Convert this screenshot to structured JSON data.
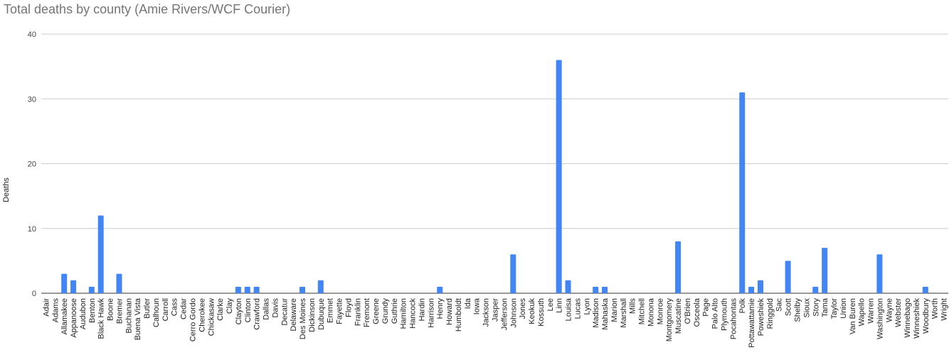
{
  "chart_data": {
    "type": "bar",
    "title": "Total deaths by county (Amie Rivers/WCF Courier)",
    "xlabel": "",
    "ylabel": "Deaths",
    "ylim": [
      0,
      40
    ],
    "yticks": [
      "0",
      "10",
      "20",
      "30",
      "40"
    ],
    "grid": true,
    "legend": "none",
    "bar_color": "#4285f4",
    "categories": [
      "Adair",
      "Adams",
      "Allamakee",
      "Appanoose",
      "Audubon",
      "Benton",
      "Black Hawk",
      "Boone",
      "Bremer",
      "Buchanan",
      "Buena Vista",
      "Butler",
      "Calhoun",
      "Carroll",
      "Cass",
      "Cedar",
      "Cerro Gordo",
      "Cherokee",
      "Chickasaw",
      "Clarke",
      "Clay",
      "Clayton",
      "Clinton",
      "Crawford",
      "Dallas",
      "Davis",
      "Decatur",
      "Delaware",
      "Des Moines",
      "Dickinson",
      "Dubuque",
      "Emmet",
      "Fayette",
      "Floyd",
      "Franklin",
      "Fremont",
      "Greene",
      "Grundy",
      "Guthrie",
      "Hamilton",
      "Hancock",
      "Hardin",
      "Harrison",
      "Henry",
      "Howard",
      "Humboldt",
      "Ida",
      "Iowa",
      "Jackson",
      "Jasper",
      "Jefferson",
      "Johnson",
      "Jones",
      "Keokuk",
      "Kossuth",
      "Lee",
      "Linn",
      "Louisa",
      "Lucas",
      "Lyon",
      "Madison",
      "Mahaska",
      "Marion",
      "Marshall",
      "Mills",
      "Mitchell",
      "Monona",
      "Monroe",
      "Montgomery",
      "Muscatine",
      "O'Brien",
      "Osceola",
      "Page",
      "Palo Alto",
      "Plymouth",
      "Pocahontas",
      "Polk",
      "Pottawattamie",
      "Poweshiek",
      "Ringgold",
      "Sac",
      "Scott",
      "Shelby",
      "Sioux",
      "Story",
      "Tama",
      "Taylor",
      "Union",
      "Van Buren",
      "Wapello",
      "Warren",
      "Washington",
      "Wayne",
      "Webster",
      "Winnebago",
      "Winneshiek",
      "Woodbury",
      "Worth",
      "Wright"
    ],
    "values": [
      0,
      0,
      3,
      2,
      0,
      1,
      12,
      0,
      3,
      0,
      0,
      0,
      0,
      0,
      0,
      0,
      0,
      0,
      0,
      0,
      0,
      1,
      1,
      1,
      0,
      0,
      0,
      0,
      1,
      0,
      2,
      0,
      0,
      0,
      0,
      0,
      0,
      0,
      0,
      0,
      0,
      0,
      0,
      1,
      0,
      0,
      0,
      0,
      0,
      0,
      0,
      6,
      0,
      0,
      0,
      0,
      36,
      2,
      0,
      0,
      1,
      1,
      0,
      0,
      0,
      0,
      0,
      0,
      0,
      8,
      0,
      0,
      0,
      0,
      0,
      0,
      31,
      1,
      2,
      0,
      0,
      5,
      0,
      0,
      1,
      7,
      0,
      0,
      0,
      0,
      0,
      6,
      0,
      0,
      0,
      0,
      1,
      0,
      0
    ]
  }
}
